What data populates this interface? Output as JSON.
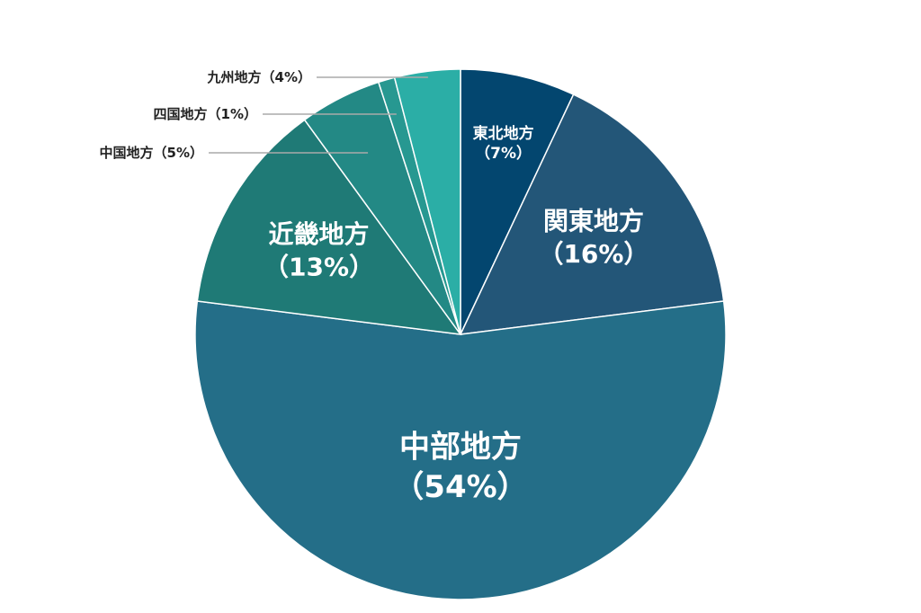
{
  "chart_data": {
    "type": "pie",
    "categories": [
      "東北地方",
      "関東地方",
      "中部地方",
      "近畿地方",
      "中国地方",
      "四国地方",
      "九州地方"
    ],
    "values": [
      7,
      16,
      54,
      13,
      5,
      1,
      4
    ],
    "value_labels": [
      "（7%）",
      "（16%）",
      "（54%）",
      "（13%）",
      "（5%）",
      "（1%）",
      "（4%）"
    ],
    "colors": [
      "#03466f",
      "#235678",
      "#246e88",
      "#1f7a76",
      "#238985",
      "#279891",
      "#2baea6"
    ]
  }
}
